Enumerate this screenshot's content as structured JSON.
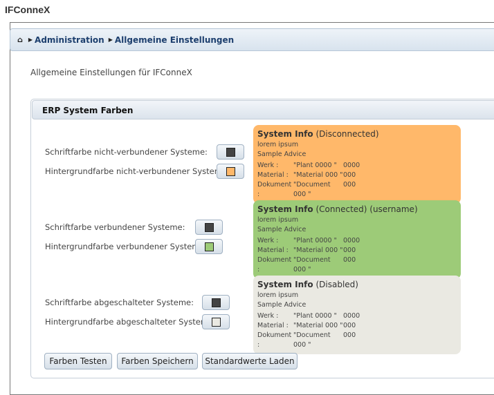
{
  "app_title": "IFConneX",
  "breadcrumb": {
    "items": [
      "Administration",
      "Allgemeine Einstellungen"
    ]
  },
  "description": "Allgemeine Einstellungen für IFConneX",
  "panel": {
    "title": "ERP System Farben"
  },
  "sections": [
    {
      "font_label": "Schriftfarbe nicht-verbundener Systeme:",
      "bg_label": "Hintergrundfarbe nicht-verbundener Systeme:",
      "font_color": "#444444",
      "bg_color": "#ffb86a",
      "card": {
        "title": "System Info",
        "status": "(Disconnected)",
        "line1": "lorem ipsum",
        "line2": "Sample Advice",
        "rows": [
          [
            "Werk :",
            "\"Plant 0000 \"",
            "0000"
          ],
          [
            "Material :",
            "\"Material 000 \"",
            "000"
          ],
          [
            "Dokument :",
            "\"Document 000 \"",
            "000"
          ]
        ]
      }
    },
    {
      "font_label": "Schriftfarbe verbundener Systeme:",
      "bg_label": "Hintergrundfarbe verbundener Systeme:",
      "font_color": "#444444",
      "bg_color": "#9dcb78",
      "card": {
        "title": "System Info",
        "status": "(Connected) (username)",
        "line1": "lorem ipsum",
        "line2": "Sample Advice",
        "rows": [
          [
            "Werk :",
            "\"Plant 0000 \"",
            "0000"
          ],
          [
            "Material :",
            "\"Material 000 \"",
            "000"
          ],
          [
            "Dokument :",
            "\"Document 000 \"",
            "000"
          ]
        ]
      }
    },
    {
      "font_label": "Schriftfarbe abgeschalteter Systeme:",
      "bg_label": "Hintergrundfarbe abgeschalteter Systeme:",
      "font_color": "#444444",
      "bg_color": "#eae9e2",
      "card": {
        "title": "System Info",
        "status": "(Disabled)",
        "line1": "lorem ipsum",
        "line2": "Sample Advice",
        "rows": [
          [
            "Werk :",
            "\"Plant 0000 \"",
            "0000"
          ],
          [
            "Material :",
            "\"Material 000 \"",
            "000"
          ],
          [
            "Dokument :",
            "\"Document 000 \"",
            "000"
          ]
        ]
      }
    }
  ],
  "buttons": {
    "test": "Farben Testen",
    "save": "Farben Speichern",
    "defaults": "Standardwerte Laden"
  }
}
